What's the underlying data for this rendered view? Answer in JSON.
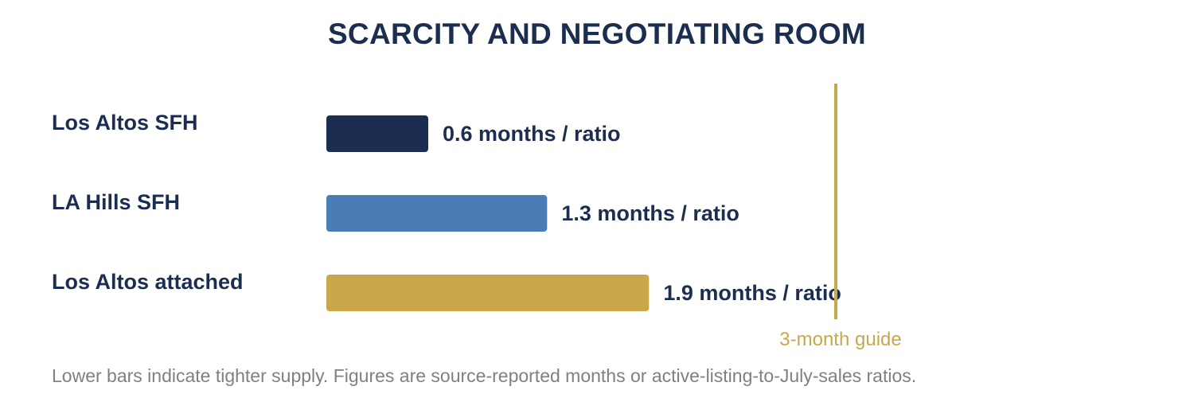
{
  "title": "SCARCITY AND NEGOTIATING ROOM",
  "footnote": "Lower bars indicate tighter supply. Figures are source-reported months or active-listing-to-July-sales ratios.",
  "chart_data": {
    "type": "bar",
    "orientation": "horizontal",
    "categories": [
      "Los Altos SFH",
      "LA Hills SFH",
      "Los Altos attached"
    ],
    "values": [
      0.6,
      1.3,
      1.9
    ],
    "value_labels": [
      "0.6 months / ratio",
      "1.3 months / ratio",
      "1.9 months / ratio"
    ],
    "colors": [
      "#1c2e50",
      "#4a7db5",
      "#c8a84a"
    ],
    "reference_line": {
      "value": 3,
      "label": "3-month guide",
      "color": "#c8a84a"
    },
    "axis_max": 3,
    "label_color": "#1c2e50",
    "grid": false,
    "legend": "none"
  }
}
